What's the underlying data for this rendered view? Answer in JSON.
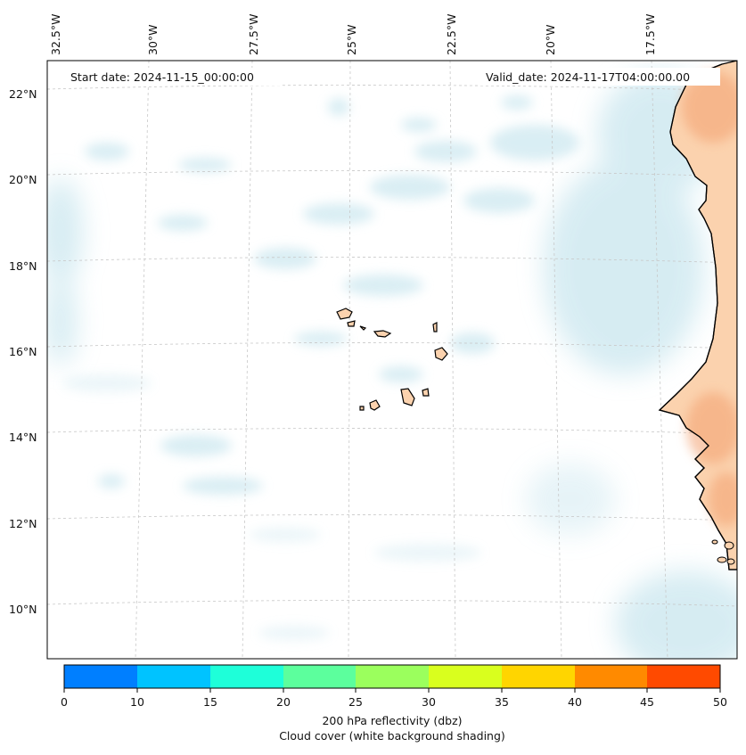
{
  "map": {
    "start_date": "Start date: 2024-11-15_00:00:00",
    "valid_date": "Valid_date: 2024-11-17T04:00:00.00",
    "lon_labels": [
      "32.5°W",
      "30°W",
      "27.5°W",
      "25°W",
      "22.5°W",
      "20°W",
      "17.5°W"
    ],
    "lat_labels": [
      "22°N",
      "20°N",
      "18°N",
      "16°N",
      "14°N",
      "12°N",
      "10°N"
    ]
  },
  "colorbar": {
    "ticks": [
      "0",
      "10",
      "15",
      "20",
      "25",
      "30",
      "35",
      "40",
      "45",
      "50"
    ],
    "colors": [
      "#007fff",
      "#00c3ff",
      "#1effd9",
      "#5cff9d",
      "#9bff5d",
      "#d9ff1e",
      "#ffd500",
      "#ff8a00",
      "#ff4a00"
    ],
    "label_line1": "200 hPa reflectivity (dbz)",
    "label_line2": "Cloud cover (white background shading)"
  },
  "colors": {
    "land": "#fbd2ae",
    "cloud": "#cde8f0",
    "coastline": "#000000",
    "grid": "#c8c8c8"
  }
}
